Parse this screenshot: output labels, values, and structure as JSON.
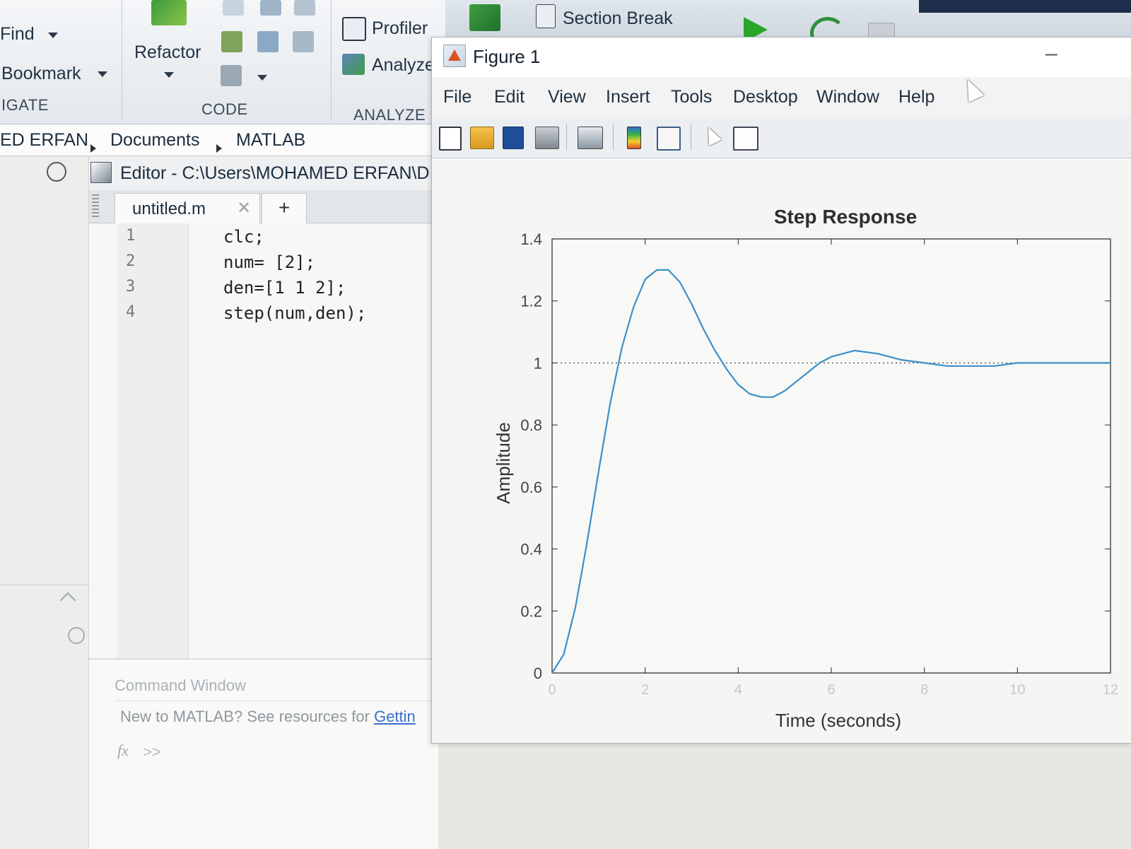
{
  "ribbon": {
    "find_label": "Find",
    "bookmark_label": "Bookmark",
    "navigate_section": "IGATE",
    "refactor_label": "Refactor",
    "code_section": "CODE",
    "profiler_label": "Profiler",
    "analyze_label": "Analyze",
    "analyze_section": "ANALYZE",
    "section_break_label": "Section Break",
    "icons": [
      "find-icon",
      "bookmark-icon",
      "refactor-icon",
      "comment-icon",
      "indent-icon",
      "insert-function-icon",
      "profiler-icon",
      "analyze-icon",
      "section-break-icon",
      "run-icon",
      "run-advance-icon",
      "stop-icon"
    ]
  },
  "address": {
    "crumbs": [
      "ED ERFAN",
      "Documents",
      "MATLAB"
    ]
  },
  "editor": {
    "title": "Editor - C:\\Users\\MOHAMED ERFAN\\D",
    "tab_name": "untitled.m",
    "new_tab": "+",
    "lines": [
      {
        "num": "1",
        "code": "clc;"
      },
      {
        "num": "2",
        "code": "num= [2];"
      },
      {
        "num": "3",
        "code": "den=[1 1 2];"
      },
      {
        "num": "4",
        "code": "step(num,den);"
      }
    ]
  },
  "command_window": {
    "title": "Command Window",
    "message": "New to MATLAB? See resources for ",
    "link": "Gettin",
    "prompt": ">>",
    "fx": "fx"
  },
  "figure": {
    "title": "Figure 1",
    "menus": [
      "File",
      "Edit",
      "View",
      "Insert",
      "Tools",
      "Desktop",
      "Window",
      "Help"
    ],
    "toolbar_icons": [
      "new-figure-icon",
      "open-file-icon",
      "save-icon",
      "print-icon",
      "link-plot-icon",
      "insert-colorbar-icon",
      "insert-legend-icon",
      "edit-plot-icon",
      "property-inspector-icon"
    ],
    "minimize": "–"
  },
  "chart_data": {
    "type": "line",
    "title": "Step Response",
    "xlabel": "Time (seconds)",
    "ylabel": "Amplitude",
    "xlim": [
      0,
      12
    ],
    "ylim": [
      0,
      1.4
    ],
    "xticks": [
      0,
      2,
      4,
      6,
      8,
      10,
      12
    ],
    "yticks": [
      0,
      0.2,
      0.4,
      0.6,
      0.8,
      1,
      1.2,
      1.4
    ],
    "ytick_labels": [
      "0",
      "0.2",
      "0.4",
      "0.6",
      "0.8",
      "1",
      "1.2",
      "1.4"
    ],
    "steady_state": 1,
    "series": [
      {
        "color": "#3d8fc9",
        "x": [
          0,
          0.25,
          0.5,
          0.75,
          1.0,
          1.25,
          1.5,
          1.75,
          2.0,
          2.25,
          2.5,
          2.75,
          3.0,
          3.25,
          3.5,
          3.75,
          4.0,
          4.25,
          4.5,
          4.75,
          5.0,
          5.25,
          5.5,
          5.75,
          6.0,
          6.5,
          7.0,
          7.5,
          8.0,
          8.5,
          9.0,
          9.5,
          10.0,
          10.5,
          11.0,
          11.5,
          12.0
        ],
        "y": [
          0,
          0.06,
          0.21,
          0.42,
          0.65,
          0.87,
          1.05,
          1.18,
          1.27,
          1.3,
          1.3,
          1.26,
          1.19,
          1.11,
          1.04,
          0.98,
          0.93,
          0.9,
          0.89,
          0.89,
          0.91,
          0.94,
          0.97,
          1.0,
          1.02,
          1.04,
          1.03,
          1.01,
          1.0,
          0.99,
          0.99,
          0.99,
          1.0,
          1.0,
          1.0,
          1.0,
          1.0
        ]
      }
    ]
  },
  "colors": {
    "line": "#3d8fc9",
    "run_green": "#2aa52a",
    "matlab_orange": "#d9531e"
  }
}
